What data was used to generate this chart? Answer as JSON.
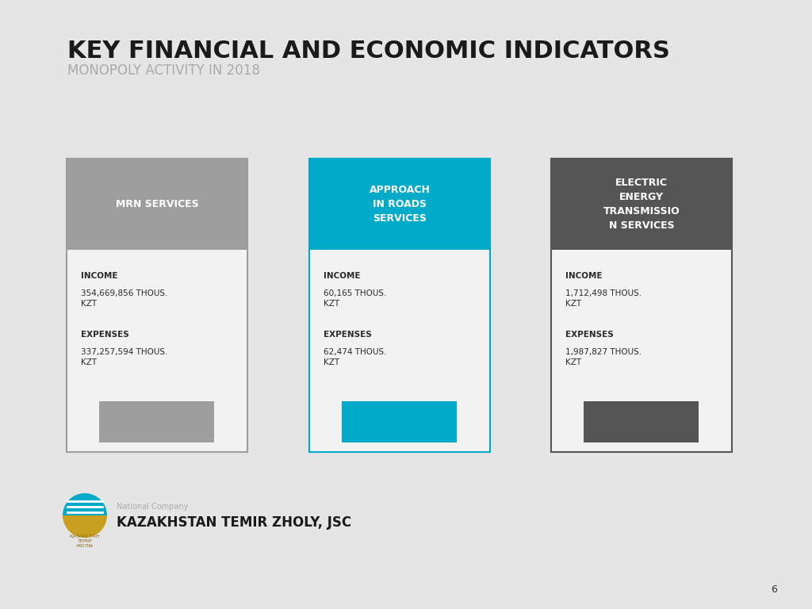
{
  "bg_color": "#e5e5e5",
  "title": "KEY FINANCIAL AND ECONOMIC INDICATORS",
  "subtitle": "MONOPOLY ACTIVITY IN 2018",
  "title_color": "#1a1a1a",
  "subtitle_color": "#aaaaaa",
  "cards": [
    {
      "header": "MRN SERVICES",
      "header_bg": "#9e9e9e",
      "header_text_color": "#ffffff",
      "body_bg": "#f2f2f2",
      "border_color": "#9e9e9e",
      "accent_color": "#9e9e9e",
      "income_label": "INCOME",
      "income_value": "354,669,856 THOUS.\nKZT",
      "expenses_label": "EXPENSES",
      "expenses_value": "337,257,594 THOUS.\nKZT"
    },
    {
      "header": "APPROACH\nIN ROADS\nSERVICES",
      "header_bg": "#00aac8",
      "header_text_color": "#ffffff",
      "body_bg": "#f2f2f2",
      "border_color": "#00aac8",
      "accent_color": "#00aac8",
      "income_label": "INCOME",
      "income_value": "60,165 THOUS.\nKZT",
      "expenses_label": "EXPENSES",
      "expenses_value": "62,474 THOUS.\nKZT"
    },
    {
      "header": "ELECTRIC\nENERGY\nTRANSMISSIO\nN SERVICES",
      "header_bg": "#555555",
      "header_text_color": "#ffffff",
      "body_bg": "#f2f2f2",
      "border_color": "#555555",
      "accent_color": "#555555",
      "income_label": "INCOME",
      "income_value": "1,712,498 THOUS.\nKZT",
      "expenses_label": "EXPENSES",
      "expenses_value": "1,987,827 THOUS.\nKZT"
    }
  ],
  "footer_national": "National Company",
  "footer_company": "KAZAKHSTAN TEMIR ZHOLY, JSC",
  "page_number": "6",
  "card_header_lines": [
    1,
    3,
    4
  ]
}
